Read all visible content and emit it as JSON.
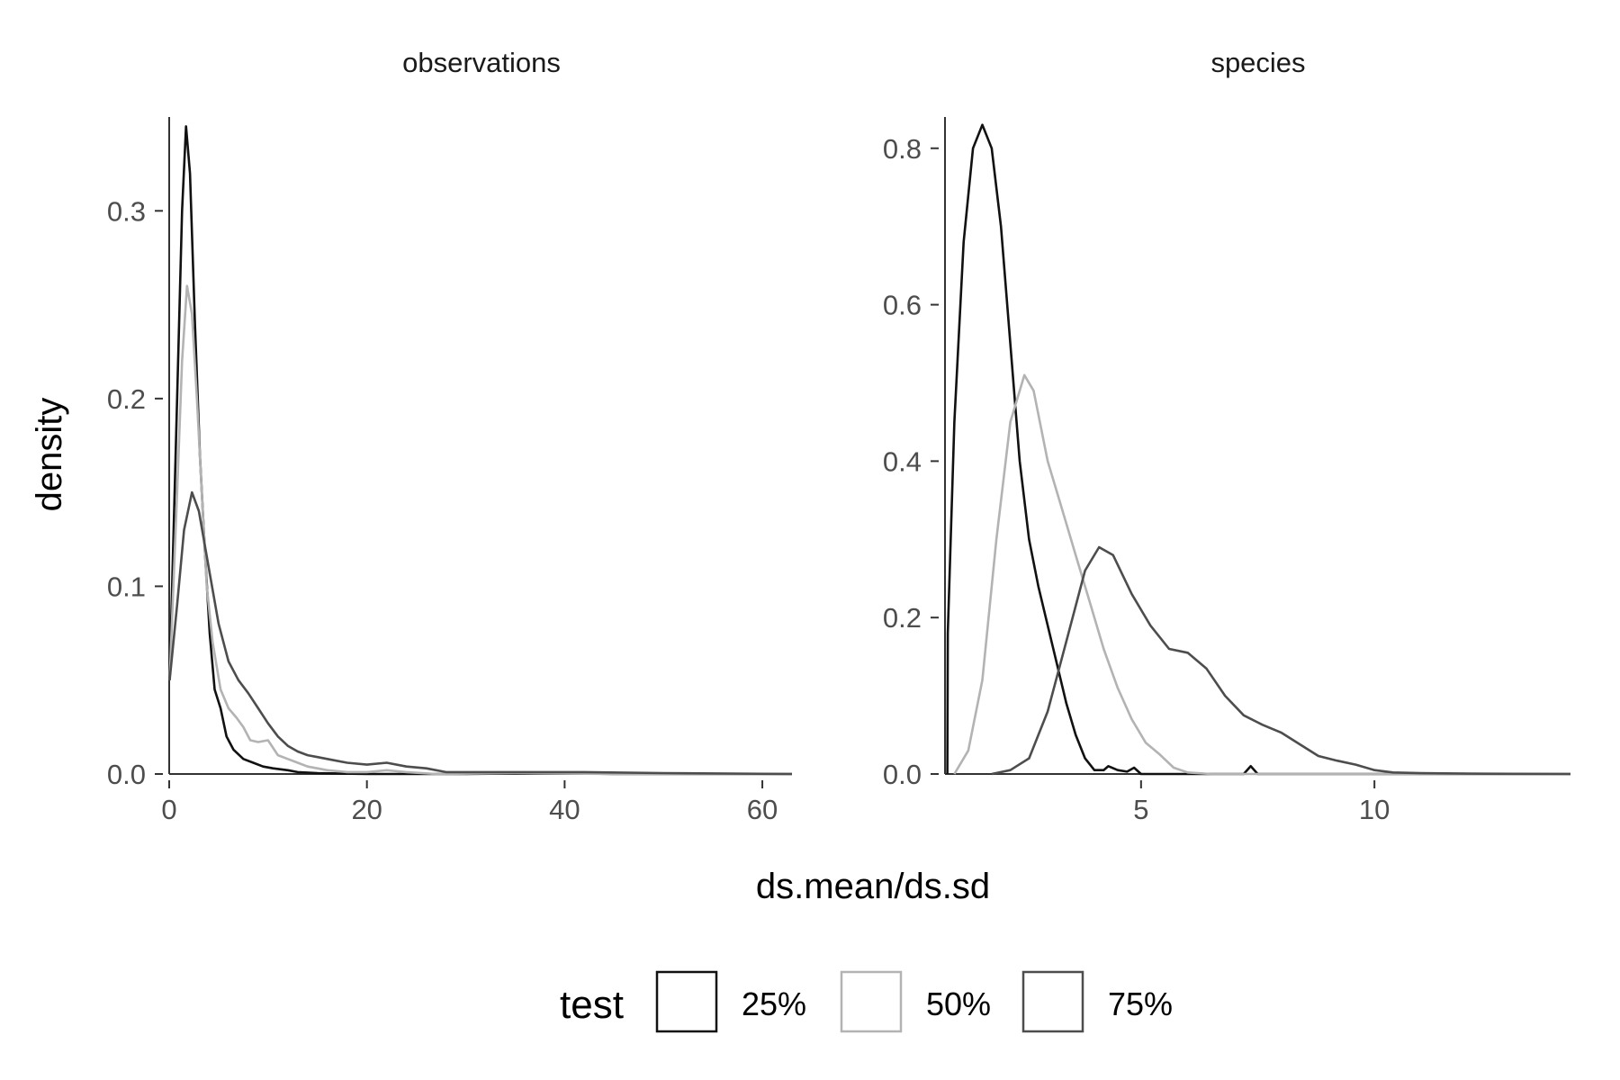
{
  "figure": {
    "xlabel": "ds.mean/ds.sd",
    "ylabel": "density"
  },
  "legend": {
    "title": "test",
    "position": "bottom",
    "items": [
      {
        "label": "25%",
        "color": "#111111"
      },
      {
        "label": "50%",
        "color": "#b3b3b3"
      },
      {
        "label": "75%",
        "color": "#4d4d4d"
      }
    ]
  },
  "chart_data": [
    {
      "type": "line",
      "title": "observations",
      "xlabel": "ds.mean/ds.sd",
      "ylabel": "density",
      "xlim": [
        0,
        63
      ],
      "ylim": [
        0,
        0.35
      ],
      "xticks": [
        0,
        20,
        40,
        60
      ],
      "yticks": [
        0.0,
        0.1,
        0.2,
        0.3
      ],
      "ytick_labels": [
        "0.0",
        "0.1",
        "0.2",
        "0.3"
      ],
      "grid": false,
      "series": [
        {
          "name": "25%",
          "color": "#111111",
          "points": [
            [
              0.05,
              0.05
            ],
            [
              0.8,
              0.2
            ],
            [
              1.3,
              0.3
            ],
            [
              1.7,
              0.345
            ],
            [
              2.1,
              0.32
            ],
            [
              2.6,
              0.24
            ],
            [
              3.1,
              0.17
            ],
            [
              3.6,
              0.12
            ],
            [
              4.1,
              0.075
            ],
            [
              4.6,
              0.045
            ],
            [
              5.2,
              0.035
            ],
            [
              5.8,
              0.02
            ],
            [
              6.5,
              0.013
            ],
            [
              7.5,
              0.008
            ],
            [
              8.5,
              0.006
            ],
            [
              9.5,
              0.004
            ],
            [
              10.5,
              0.003
            ],
            [
              12,
              0.002
            ],
            [
              13,
              0.001
            ],
            [
              15,
              0.0005
            ],
            [
              20,
              0.0
            ],
            [
              30,
              0.0
            ],
            [
              40,
              0.0005
            ],
            [
              45,
              0.0
            ],
            [
              63,
              0.0
            ]
          ]
        },
        {
          "name": "50%",
          "color": "#b3b3b3",
          "points": [
            [
              0.05,
              0.05
            ],
            [
              0.8,
              0.15
            ],
            [
              1.3,
              0.22
            ],
            [
              1.8,
              0.26
            ],
            [
              2.3,
              0.245
            ],
            [
              2.8,
              0.2
            ],
            [
              3.3,
              0.15
            ],
            [
              3.8,
              0.1
            ],
            [
              4.4,
              0.07
            ],
            [
              5.2,
              0.045
            ],
            [
              6,
              0.035
            ],
            [
              6.8,
              0.03
            ],
            [
              7.5,
              0.025
            ],
            [
              8.2,
              0.018
            ],
            [
              9,
              0.017
            ],
            [
              10,
              0.018
            ],
            [
              11,
              0.01
            ],
            [
              12,
              0.008
            ],
            [
              13,
              0.006
            ],
            [
              14,
              0.004
            ],
            [
              16,
              0.002
            ],
            [
              18,
              0.001
            ],
            [
              20,
              0.001
            ],
            [
              22,
              0.002
            ],
            [
              24,
              0.001
            ],
            [
              27,
              0.0
            ],
            [
              35,
              0.0005
            ],
            [
              45,
              0.0
            ],
            [
              63,
              0.0
            ]
          ]
        },
        {
          "name": "75%",
          "color": "#4d4d4d",
          "points": [
            [
              0.05,
              0.05
            ],
            [
              0.8,
              0.09
            ],
            [
              1.5,
              0.13
            ],
            [
              2.3,
              0.15
            ],
            [
              3,
              0.14
            ],
            [
              4,
              0.11
            ],
            [
              5,
              0.08
            ],
            [
              6,
              0.06
            ],
            [
              7,
              0.05
            ],
            [
              8,
              0.043
            ],
            [
              9,
              0.035
            ],
            [
              10,
              0.027
            ],
            [
              11,
              0.02
            ],
            [
              12,
              0.015
            ],
            [
              13,
              0.012
            ],
            [
              14,
              0.01
            ],
            [
              15,
              0.009
            ],
            [
              16,
              0.008
            ],
            [
              18,
              0.006
            ],
            [
              20,
              0.005
            ],
            [
              22,
              0.006
            ],
            [
              24,
              0.004
            ],
            [
              26,
              0.003
            ],
            [
              28,
              0.001
            ],
            [
              32,
              0.001
            ],
            [
              37,
              0.001
            ],
            [
              42,
              0.001
            ],
            [
              50,
              0.0005
            ],
            [
              63,
              0.0
            ]
          ]
        }
      ]
    },
    {
      "type": "line",
      "title": "species",
      "xlabel": "ds.mean/ds.sd",
      "ylabel": "density",
      "xlim": [
        0.8,
        14.2
      ],
      "ylim": [
        0,
        0.84
      ],
      "xticks": [
        5,
        10
      ],
      "yticks": [
        0.0,
        0.2,
        0.4,
        0.6,
        0.8
      ],
      "ytick_labels": [
        "0.0",
        "0.2",
        "0.4",
        "0.6",
        "0.8"
      ],
      "grid": false,
      "series": [
        {
          "name": "25%",
          "color": "#111111",
          "points": [
            [
              0.85,
              0.0
            ],
            [
              0.86,
              0.18
            ],
            [
              1.0,
              0.45
            ],
            [
              1.2,
              0.68
            ],
            [
              1.4,
              0.8
            ],
            [
              1.6,
              0.83
            ],
            [
              1.8,
              0.8
            ],
            [
              2.0,
              0.7
            ],
            [
              2.2,
              0.55
            ],
            [
              2.4,
              0.4
            ],
            [
              2.6,
              0.3
            ],
            [
              2.8,
              0.24
            ],
            [
              3.0,
              0.19
            ],
            [
              3.2,
              0.14
            ],
            [
              3.4,
              0.09
            ],
            [
              3.6,
              0.05
            ],
            [
              3.8,
              0.02
            ],
            [
              4.0,
              0.005
            ],
            [
              4.2,
              0.005
            ],
            [
              4.3,
              0.01
            ],
            [
              4.5,
              0.005
            ],
            [
              4.7,
              0.003
            ],
            [
              4.85,
              0.008
            ],
            [
              5.0,
              0.0
            ],
            [
              7.2,
              0.0
            ],
            [
              7.35,
              0.01
            ],
            [
              7.5,
              0.0
            ],
            [
              14.2,
              0.0
            ]
          ]
        },
        {
          "name": "50%",
          "color": "#b3b3b3",
          "points": [
            [
              1.0,
              0.0
            ],
            [
              1.3,
              0.03
            ],
            [
              1.6,
              0.12
            ],
            [
              1.9,
              0.3
            ],
            [
              2.2,
              0.45
            ],
            [
              2.5,
              0.51
            ],
            [
              2.7,
              0.49
            ],
            [
              3.0,
              0.4
            ],
            [
              3.3,
              0.34
            ],
            [
              3.6,
              0.28
            ],
            [
              3.9,
              0.22
            ],
            [
              4.2,
              0.16
            ],
            [
              4.5,
              0.11
            ],
            [
              4.8,
              0.07
            ],
            [
              5.1,
              0.04
            ],
            [
              5.4,
              0.025
            ],
            [
              5.7,
              0.008
            ],
            [
              6.0,
              0.002
            ],
            [
              6.5,
              0.0
            ],
            [
              14.2,
              0.0
            ]
          ]
        },
        {
          "name": "75%",
          "color": "#4d4d4d",
          "points": [
            [
              1.8,
              0.0
            ],
            [
              2.2,
              0.005
            ],
            [
              2.6,
              0.02
            ],
            [
              3.0,
              0.08
            ],
            [
              3.4,
              0.17
            ],
            [
              3.8,
              0.26
            ],
            [
              4.1,
              0.29
            ],
            [
              4.4,
              0.28
            ],
            [
              4.8,
              0.23
            ],
            [
              5.2,
              0.19
            ],
            [
              5.6,
              0.16
            ],
            [
              6.0,
              0.155
            ],
            [
              6.4,
              0.135
            ],
            [
              6.8,
              0.1
            ],
            [
              7.2,
              0.075
            ],
            [
              7.6,
              0.063
            ],
            [
              8.0,
              0.053
            ],
            [
              8.4,
              0.038
            ],
            [
              8.8,
              0.023
            ],
            [
              9.2,
              0.017
            ],
            [
              9.6,
              0.012
            ],
            [
              10.0,
              0.005
            ],
            [
              10.4,
              0.002
            ],
            [
              11.0,
              0.001
            ],
            [
              12.0,
              0.0005
            ],
            [
              14.2,
              0.0
            ]
          ]
        }
      ]
    }
  ]
}
